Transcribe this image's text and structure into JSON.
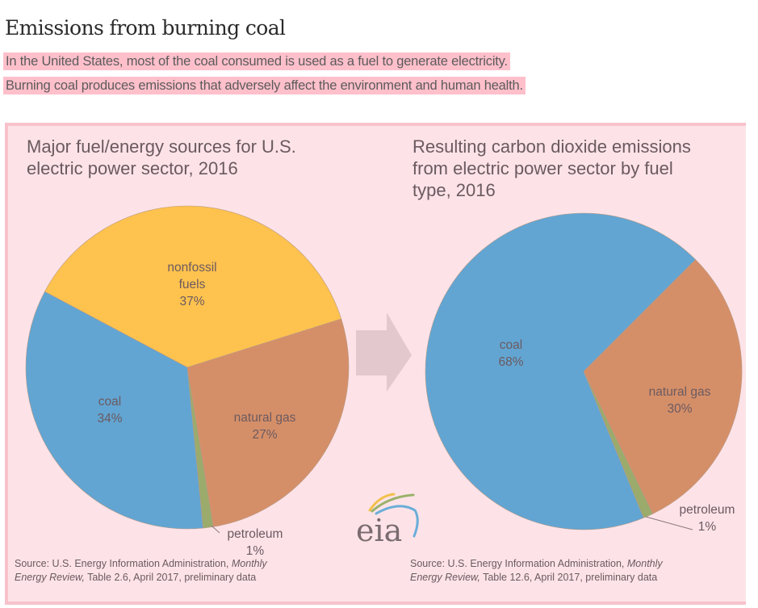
{
  "page": {
    "heading": "Emissions from burning coal",
    "intro": [
      "In the United States, most of the coal consumed is used as a fuel to generate electricity.",
      "Burning coal produces emissions that adversely affect the environment and human health."
    ],
    "highlight_color": "#ffc0cb",
    "figure_background": "#fde3e8",
    "logo_text": "eia"
  },
  "chart_data": [
    {
      "type": "pie",
      "title": "Major fuel/energy sources for U.S. electric power sector, 2016",
      "title_lines": [
        "Major fuel/energy sources for U.S.",
        "electric power sector, 2016"
      ],
      "start_angle_deg": 298,
      "slices": [
        {
          "label": "nonfossil fuels",
          "label_lines": [
            "nonfossil",
            "fuels"
          ],
          "value": 37,
          "display": "37%",
          "color": "#fec24e"
        },
        {
          "label": "natural gas",
          "label_lines": [
            "natural gas"
          ],
          "value": 27,
          "display": "27%",
          "color": "#d58f68"
        },
        {
          "label": "petroleum",
          "label_lines": [
            "petroleum"
          ],
          "value": 1,
          "display": "1%",
          "color": "#9aab6c"
        },
        {
          "label": "coal",
          "label_lines": [
            "coal"
          ],
          "value": 34,
          "display": "34%",
          "color": "#62a5d2"
        }
      ],
      "source": {
        "prefix": "Source: U.S. Energy Information Administration, ",
        "italic_1": "Monthly",
        "italic_2": "Energy Review,",
        "suffix": " Table 2.6, April 2017, preliminary data"
      }
    },
    {
      "type": "pie",
      "title": "Resulting carbon dioxide emissions from electric power sector by fuel type, 2016",
      "title_lines": [
        "Resulting carbon dioxide emissions",
        "from electric power sector by fuel",
        "type, 2016"
      ],
      "start_angle_deg": 45,
      "slices": [
        {
          "label": "natural gas",
          "label_lines": [
            "natural gas"
          ],
          "value": 30,
          "display": "30%",
          "color": "#d58f68"
        },
        {
          "label": "petroleum",
          "label_lines": [
            "petroleum"
          ],
          "value": 1,
          "display": "1%",
          "color": "#9aab6c"
        },
        {
          "label": "coal",
          "label_lines": [
            "coal"
          ],
          "value": 68,
          "display": "68%",
          "color": "#62a5d2"
        }
      ],
      "source": {
        "prefix": "Source: U.S. Energy Information Administration, ",
        "italic_1": "Monthly",
        "italic_2": "Energy Review,",
        "suffix": " Table 12.6, April 2017, preliminary data"
      }
    }
  ]
}
